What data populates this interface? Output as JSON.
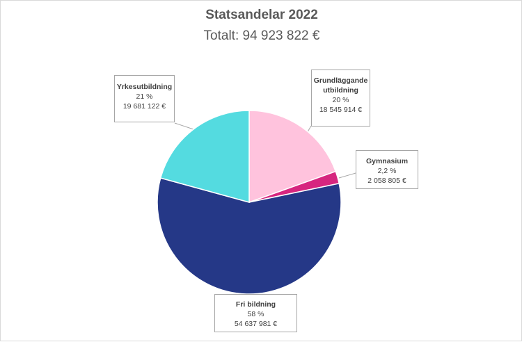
{
  "chart_data": {
    "type": "pie",
    "title": "Statsandelar 2022",
    "subtitle": "Totalt: 94 923 822 €",
    "slices": [
      {
        "key": "grundlaggande",
        "label": "Grundläggande utbildning",
        "percent_label": "20 %",
        "amount_label": "18 545 914 €",
        "value": 18545914,
        "color": "#ffc3dd"
      },
      {
        "key": "gymnasium",
        "label": "Gymnasium",
        "percent_label": "2,2 %",
        "amount_label": "2 058 805 €",
        "value": 2058805,
        "color": "#d6267f"
      },
      {
        "key": "fri-bildning",
        "label": "Fri bildning",
        "percent_label": "58 %",
        "amount_label": "54 637 981 €",
        "value": 54637981,
        "color": "#253887"
      },
      {
        "key": "yrkesutbildning",
        "label": "Yrkesutbildning",
        "percent_label": "21 %",
        "amount_label": "19 681 122 €",
        "value": 19681122,
        "color": "#54dbe0"
      }
    ],
    "start_angle": "12 o'clock",
    "direction": "clockwise",
    "legend": "none"
  }
}
